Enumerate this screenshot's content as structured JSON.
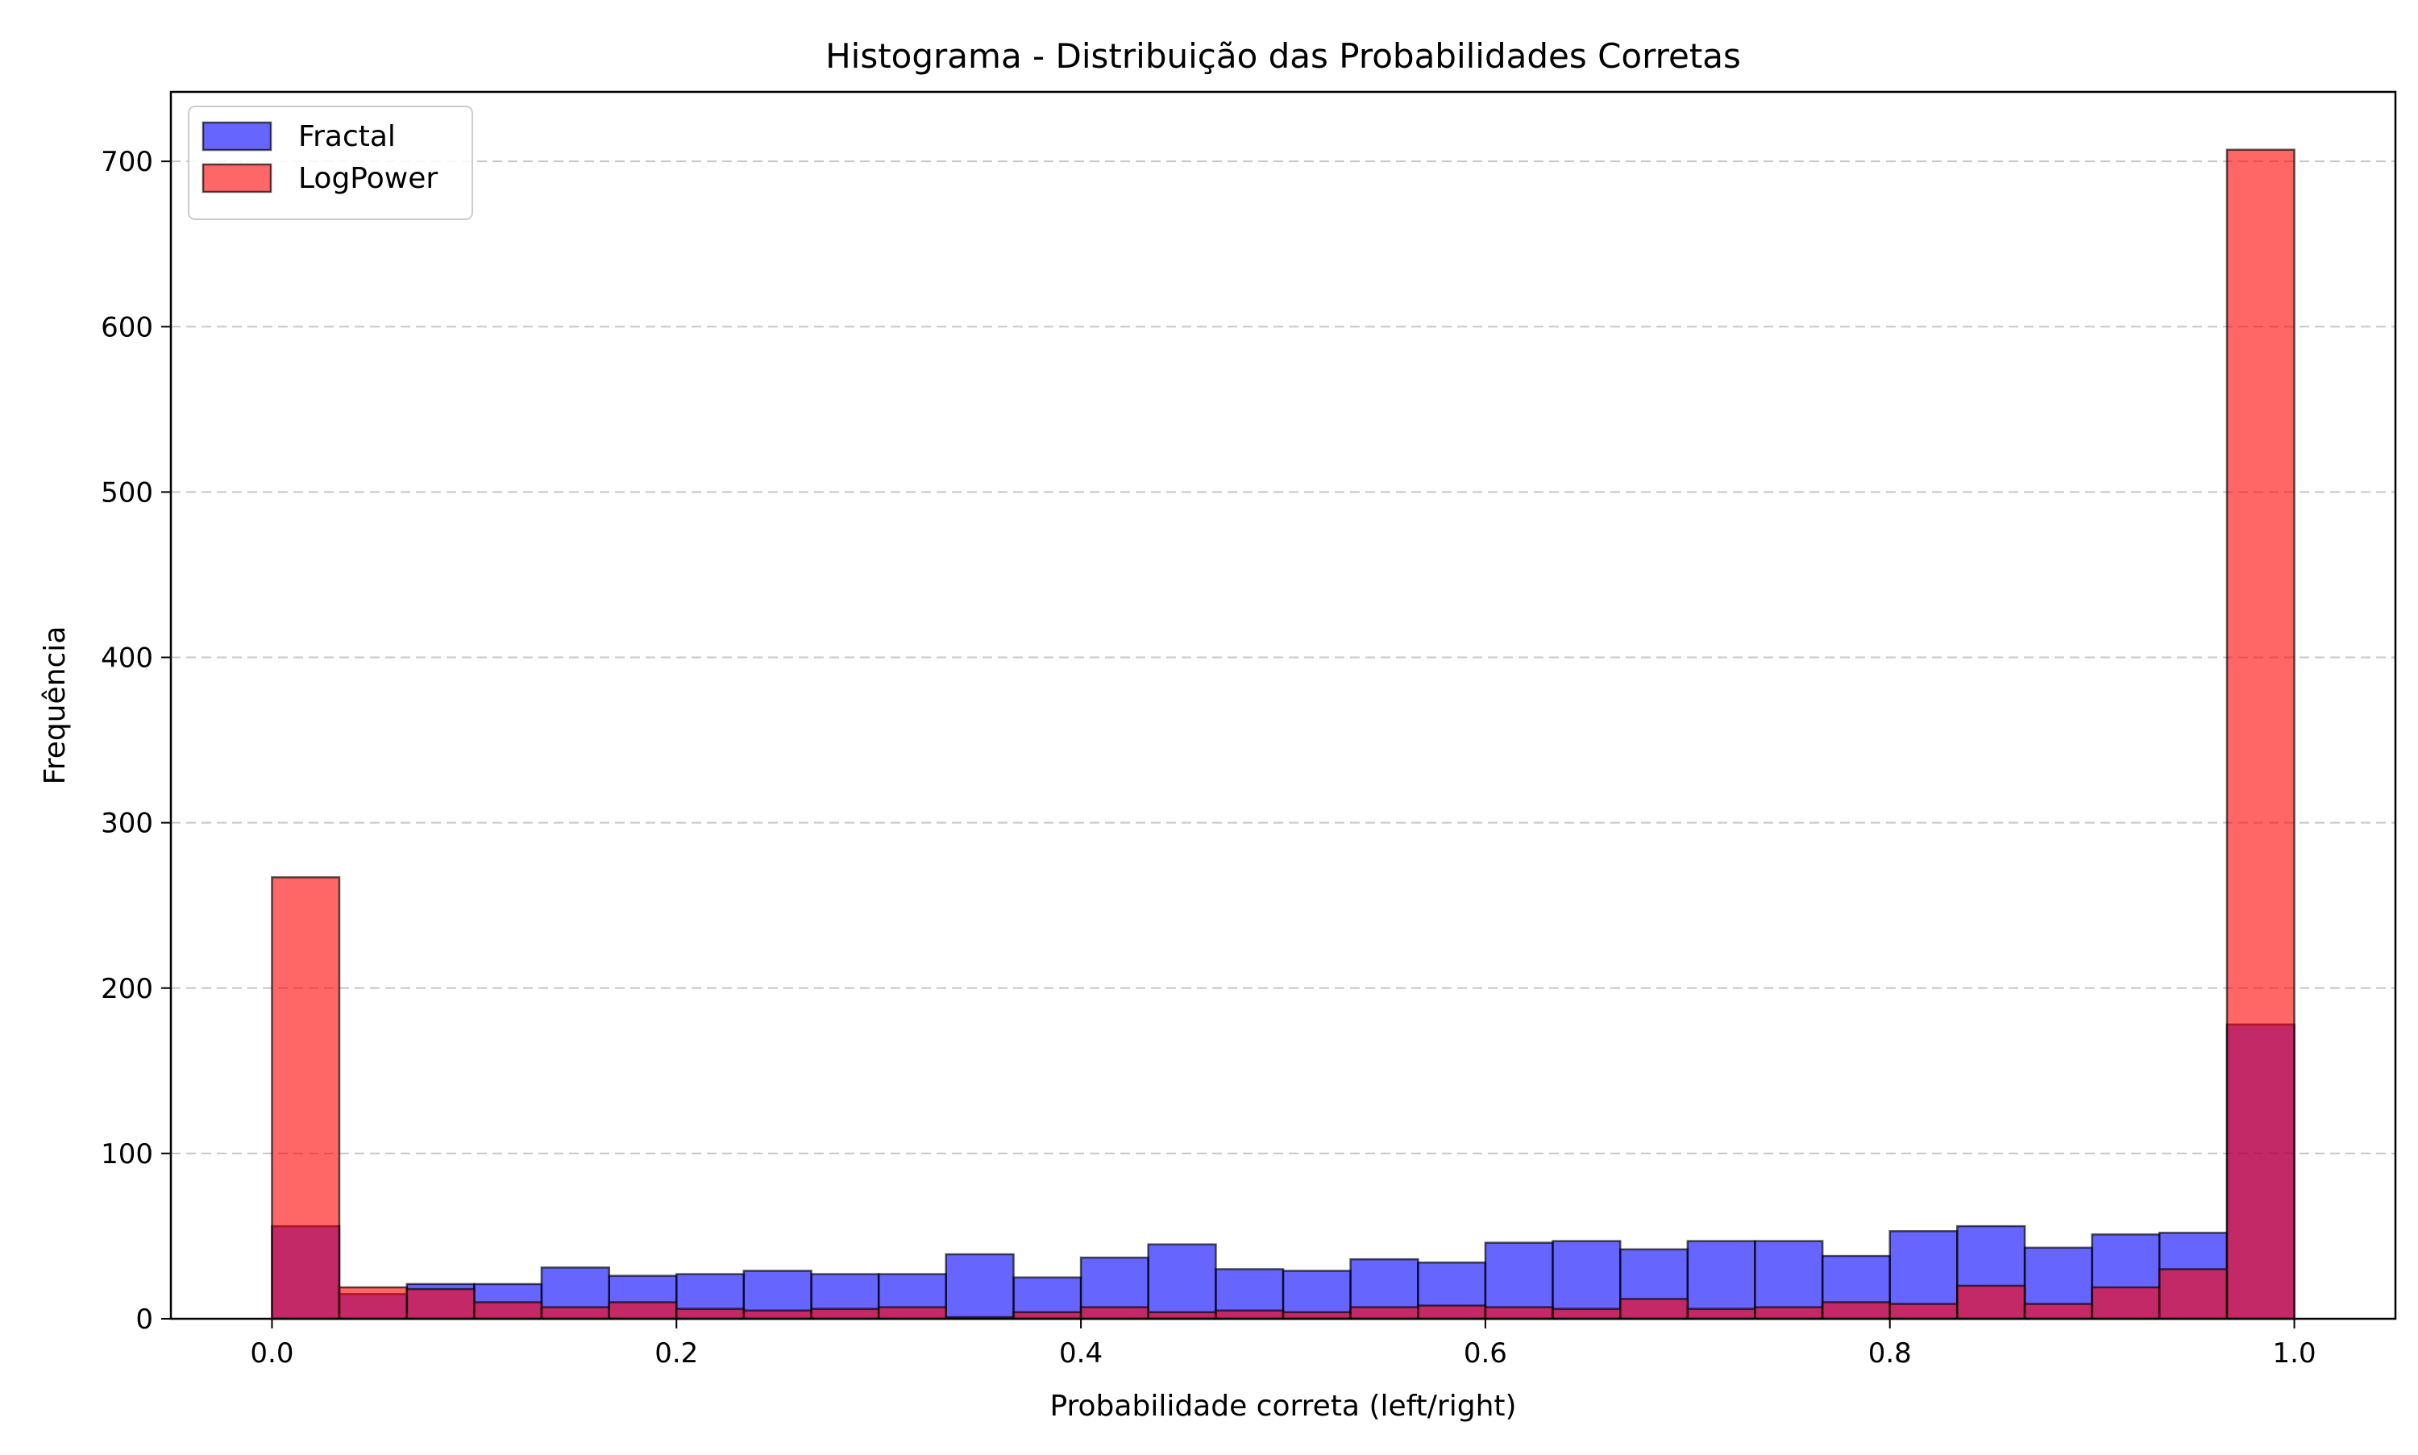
{
  "chart_data": {
    "type": "bar",
    "title": "Histograma - Distribuição das Probabilidades Corretas",
    "xlabel": "Probabilidade correta (left/right)",
    "ylabel": "Frequência",
    "xlim": [
      -0.05,
      1.05
    ],
    "ylim": [
      0,
      742
    ],
    "x_ticks": [
      "0.0",
      "0.2",
      "0.4",
      "0.6",
      "0.8",
      "1.0"
    ],
    "y_ticks": [
      "0",
      "100",
      "200",
      "300",
      "400",
      "500",
      "600",
      "700"
    ],
    "bin_edges": [
      0.0,
      0.0333,
      0.0667,
      0.1,
      0.1333,
      0.1667,
      0.2,
      0.2333,
      0.2667,
      0.3,
      0.3333,
      0.3667,
      0.4,
      0.4333,
      0.4667,
      0.5,
      0.5333,
      0.5667,
      0.6,
      0.6333,
      0.6667,
      0.7,
      0.7333,
      0.7667,
      0.8,
      0.8333,
      0.8667,
      0.9,
      0.9333,
      0.9667,
      1.0
    ],
    "grid": "y, dashed",
    "legend_position": "top-left",
    "series": [
      {
        "name": "Fractal",
        "color": "#0000ff",
        "opacity": 0.6,
        "values": [
          56,
          15,
          21,
          21,
          31,
          26,
          27,
          29,
          27,
          27,
          39,
          25,
          37,
          45,
          30,
          29,
          36,
          34,
          46,
          47,
          42,
          47,
          47,
          38,
          53,
          56,
          43,
          51,
          52,
          178
        ]
      },
      {
        "name": "LogPower",
        "color": "#ff0000",
        "opacity": 0.6,
        "values": [
          267,
          19,
          18,
          10,
          7,
          10,
          6,
          5,
          6,
          7,
          1,
          4,
          7,
          4,
          5,
          4,
          7,
          8,
          7,
          6,
          12,
          6,
          7,
          10,
          9,
          20,
          9,
          19,
          30,
          707
        ]
      }
    ]
  }
}
